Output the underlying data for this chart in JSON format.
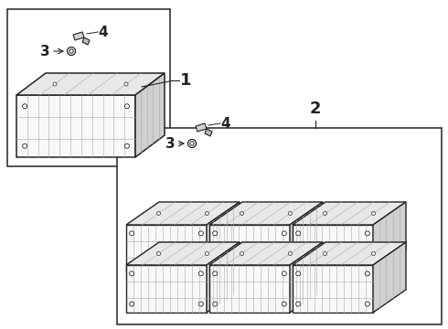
{
  "background_color": "#ffffff",
  "line_color": "#222222",
  "light_gray": "#aaaaaa",
  "mid_gray": "#888888",
  "fill_color": "#f8f8f8",
  "top_fill": "#e8e8e8",
  "right_fill": "#d0d0d0",
  "label_1": "1",
  "label_2": "2",
  "label_3": "3",
  "label_4": "4",
  "font_size_labels": 13,
  "font_size_parts": 11
}
